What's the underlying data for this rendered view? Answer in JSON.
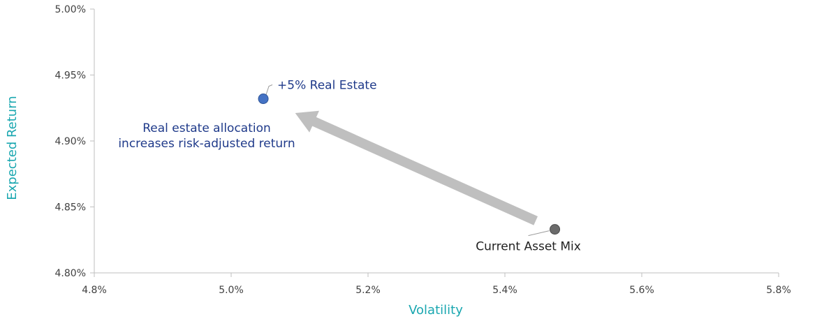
{
  "chart_data": {
    "type": "scatter",
    "xlabel": "Volatility",
    "ylabel": "Expected Return",
    "xlim": [
      4.8,
      5.8
    ],
    "ylim": [
      4.8,
      5.0
    ],
    "x_ticks": [
      "4.8%",
      "5.0%",
      "5.2%",
      "5.4%",
      "5.6%",
      "5.8%"
    ],
    "x_tick_values": [
      4.8,
      5.0,
      5.2,
      5.4,
      5.6,
      5.8
    ],
    "y_ticks": [
      "4.80%",
      "4.85%",
      "4.90%",
      "4.95%",
      "5.00%"
    ],
    "y_tick_values": [
      4.8,
      4.85,
      4.9,
      4.95,
      5.0
    ],
    "grid": false,
    "points": [
      {
        "label": "+5% Real Estate",
        "x": 5.047,
        "y": 4.932,
        "color": "#4472c4"
      },
      {
        "label": "Current Asset Mix",
        "x": 5.473,
        "y": 4.833,
        "color": "#6b6b6b"
      }
    ],
    "arrow": {
      "from": "Current Asset Mix",
      "to": "+5% Real Estate",
      "color": "#bfbfbf"
    },
    "annotation": {
      "lines": [
        "Real estate allocation",
        "increases risk-adjusted return"
      ],
      "color": "#1f3a8a"
    },
    "colors": {
      "axis_title": "#1aa7b0",
      "point_label_highlight": "#1f3a8a",
      "point_label_plain": "#222222",
      "axis_line": "#bfbfbf"
    }
  }
}
